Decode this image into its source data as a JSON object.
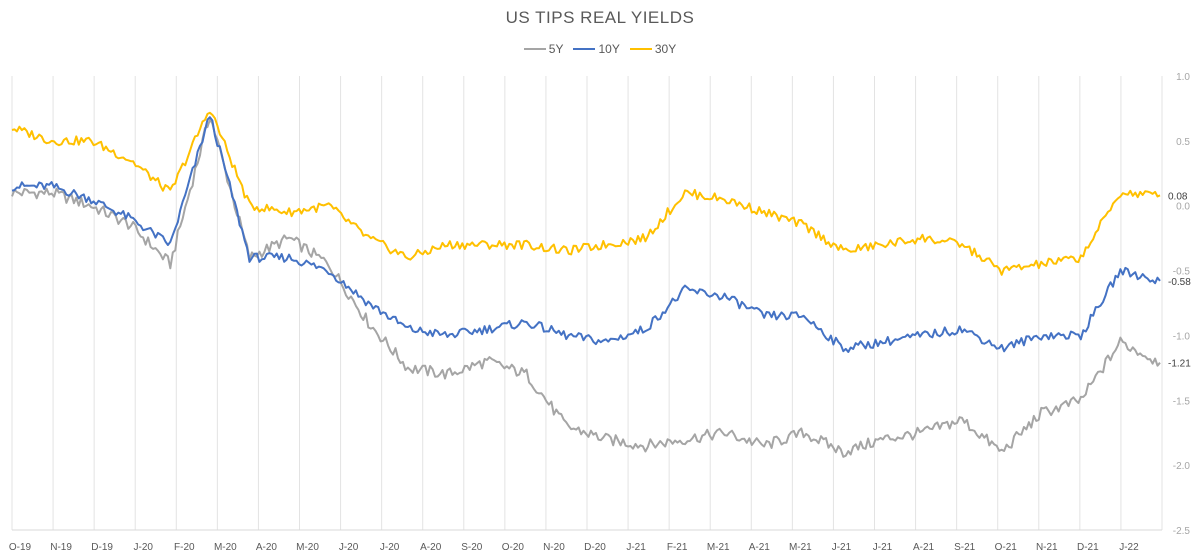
{
  "chart_data": {
    "type": "line",
    "title": "US TIPS REAL YIELDS",
    "xlabel": "",
    "ylabel": "",
    "ylim": [
      -2.5,
      1.0
    ],
    "yticks": [
      1.0,
      0.5,
      0.0,
      -0.5,
      -1.0,
      -1.5,
      -2.0,
      -2.5
    ],
    "ytick_labels": [
      "1.0",
      "0.5",
      "0.0",
      "-0.5",
      "-1.0",
      "-1.5",
      "-2.0",
      "-2.5"
    ],
    "y_axis_side": "right",
    "x_tick_labels": [
      "O-19",
      "N-19",
      "D-19",
      "J-20",
      "F-20",
      "M-20",
      "A-20",
      "M-20",
      "J-20",
      "J-20",
      "A-20",
      "S-20",
      "O-20",
      "N-20",
      "D-20",
      "J-21",
      "F-21",
      "M-21",
      "A-21",
      "M-21",
      "J-21",
      "J-21",
      "A-21",
      "S-21",
      "O-21",
      "N-21",
      "D-21",
      "J-22"
    ],
    "grid": "vertical",
    "legend_position": "top-center",
    "x": [
      "2019-10",
      "2019-11",
      "2019-12",
      "2020-01",
      "2020-02",
      "2020-02b",
      "2020-03",
      "2020-04",
      "2020-05",
      "2020-06",
      "2020-07",
      "2020-08",
      "2020-09",
      "2020-10",
      "2020-11",
      "2020-12",
      "2021-01",
      "2021-02",
      "2021-03",
      "2021-04",
      "2021-05",
      "2021-06",
      "2021-07",
      "2021-08",
      "2021-09",
      "2021-10",
      "2021-11",
      "2021-12",
      "2022-01",
      "2022-02"
    ],
    "series": [
      {
        "name": "5Y",
        "color": "#a5a5a5",
        "values": [
          0.1,
          0.1,
          0.0,
          -0.15,
          -0.45,
          0.7,
          -0.4,
          -0.25,
          -0.45,
          -0.9,
          -1.25,
          -1.3,
          -1.2,
          -1.3,
          -1.7,
          -1.8,
          -1.85,
          -1.8,
          -1.75,
          -1.85,
          -1.75,
          -1.9,
          -1.8,
          -1.75,
          -1.65,
          -1.9,
          -1.6,
          -1.5,
          -1.05,
          -1.21
        ],
        "end_label": "-1.21"
      },
      {
        "name": "10Y",
        "color": "#4472c4",
        "values": [
          0.15,
          0.15,
          0.05,
          -0.1,
          -0.3,
          0.7,
          -0.4,
          -0.4,
          -0.5,
          -0.75,
          -0.95,
          -1.0,
          -0.95,
          -0.9,
          -1.0,
          -1.05,
          -0.95,
          -0.65,
          -0.7,
          -0.85,
          -0.85,
          -1.1,
          -1.05,
          -1.0,
          -0.95,
          -1.1,
          -1.0,
          -1.0,
          -0.5,
          -0.58
        ],
        "end_label": "-0.58"
      },
      {
        "name": "30Y",
        "color": "#ffc000",
        "values": [
          0.6,
          0.5,
          0.5,
          0.35,
          0.1,
          0.75,
          0.0,
          -0.05,
          0.0,
          -0.25,
          -0.4,
          -0.3,
          -0.3,
          -0.3,
          -0.35,
          -0.3,
          -0.25,
          0.1,
          0.05,
          -0.05,
          -0.15,
          -0.35,
          -0.3,
          -0.25,
          -0.3,
          -0.5,
          -0.45,
          -0.4,
          0.1,
          0.08
        ],
        "end_label": "0.08"
      }
    ]
  }
}
